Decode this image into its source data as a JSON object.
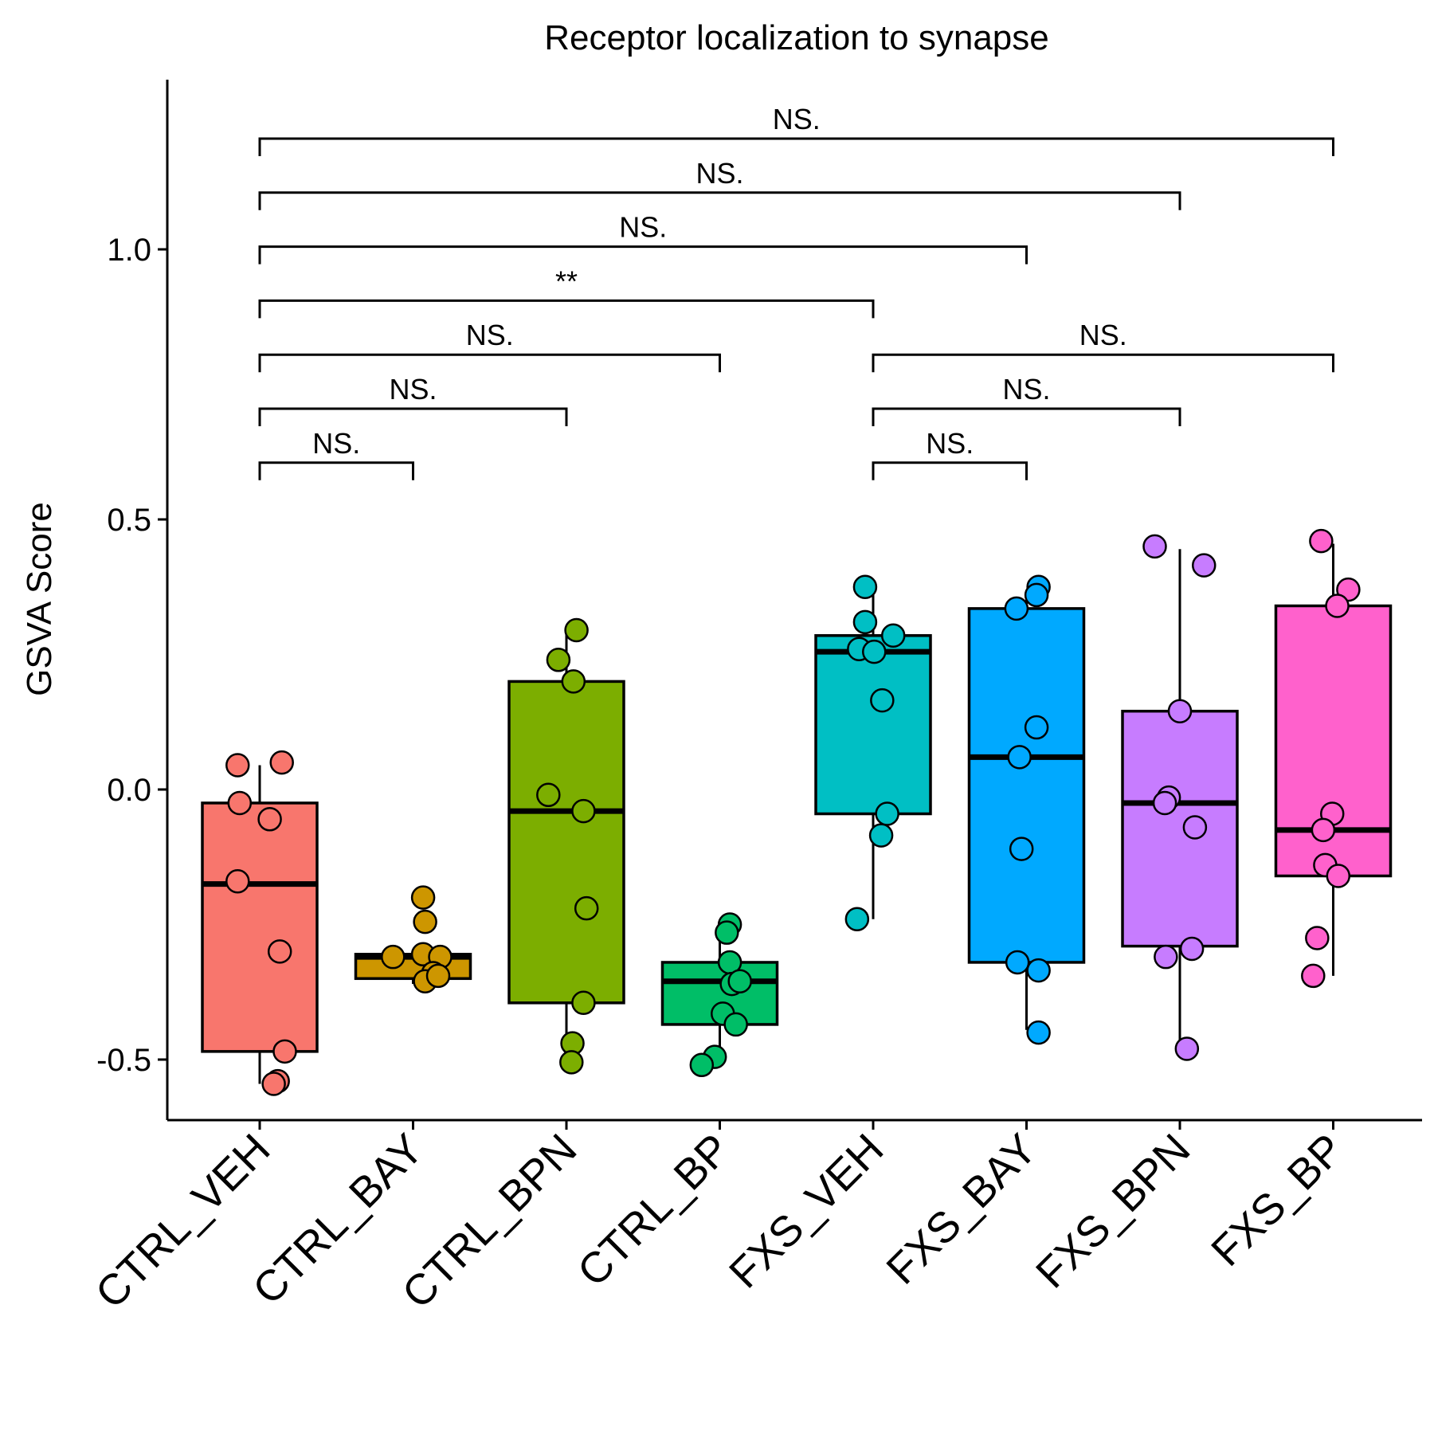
{
  "chart_data": {
    "type": "box",
    "title": "Receptor localization to synapse",
    "xlabel": "",
    "ylabel": "GSVA Score",
    "ylim": [
      -0.62,
      1.3
    ],
    "yticks": [
      "-0.5",
      "0.0",
      "0.5",
      "1.0"
    ],
    "ytick_values": [
      -0.5,
      0.0,
      0.5,
      1.0
    ],
    "grid": false,
    "legend": "none",
    "groups": [
      {
        "name": "CTRL_VEH",
        "color": "#F8766D",
        "q1": -0.485,
        "median": -0.175,
        "q3": -0.025,
        "whisker_low": -0.545,
        "whisker_high": 0.045,
        "points": [
          [
            -0.22,
            0.045
          ],
          [
            0.22,
            0.05
          ],
          [
            -0.2,
            -0.025
          ],
          [
            0.1,
            -0.055
          ],
          [
            -0.22,
            -0.17
          ],
          [
            0.2,
            -0.3
          ],
          [
            0.25,
            -0.485
          ],
          [
            0.18,
            -0.54
          ],
          [
            0.14,
            -0.545
          ]
        ]
      },
      {
        "name": "CTRL_BAY",
        "color": "#CD9600",
        "q1": -0.35,
        "median": -0.31,
        "q3": -0.305,
        "whisker_low": -0.36,
        "whisker_high": -0.3,
        "points": [
          [
            0.1,
            -0.2
          ],
          [
            0.12,
            -0.245
          ],
          [
            -0.2,
            -0.31
          ],
          [
            0.1,
            -0.305
          ],
          [
            0.27,
            -0.31
          ],
          [
            0.2,
            -0.34
          ],
          [
            0.12,
            -0.355
          ],
          [
            0.25,
            -0.345
          ]
        ]
      },
      {
        "name": "CTRL_BPN",
        "color": "#7CAE00",
        "q1": -0.395,
        "median": -0.04,
        "q3": 0.2,
        "whisker_low": -0.51,
        "whisker_high": 0.29,
        "points": [
          [
            0.1,
            0.295
          ],
          [
            -0.08,
            0.24
          ],
          [
            0.07,
            0.2
          ],
          [
            -0.18,
            -0.01
          ],
          [
            0.17,
            -0.04
          ],
          [
            0.2,
            -0.22
          ],
          [
            0.17,
            -0.395
          ],
          [
            0.06,
            -0.47
          ],
          [
            0.05,
            -0.505
          ]
        ]
      },
      {
        "name": "CTRL_BP",
        "color": "#00BE67",
        "q1": -0.435,
        "median": -0.355,
        "q3": -0.32,
        "whisker_low": -0.51,
        "whisker_high": -0.255,
        "points": [
          [
            0.1,
            -0.25
          ],
          [
            0.07,
            -0.265
          ],
          [
            0.1,
            -0.32
          ],
          [
            0.12,
            -0.36
          ],
          [
            0.2,
            -0.355
          ],
          [
            0.03,
            -0.415
          ],
          [
            0.16,
            -0.435
          ],
          [
            -0.05,
            -0.495
          ],
          [
            -0.18,
            -0.51
          ]
        ]
      },
      {
        "name": "FXS_VEH",
        "color": "#00BFC4",
        "q1": -0.045,
        "median": 0.255,
        "q3": 0.285,
        "whisker_low": -0.24,
        "whisker_high": 0.375,
        "points": [
          [
            -0.08,
            0.375
          ],
          [
            -0.08,
            0.31
          ],
          [
            0.2,
            0.285
          ],
          [
            -0.14,
            0.26
          ],
          [
            0.01,
            0.255
          ],
          [
            0.09,
            0.165
          ],
          [
            0.14,
            -0.045
          ],
          [
            0.08,
            -0.085
          ],
          [
            -0.16,
            -0.24
          ]
        ]
      },
      {
        "name": "FXS_BAY",
        "color": "#00A9FF",
        "q1": -0.32,
        "median": 0.06,
        "q3": 0.335,
        "whisker_low": -0.445,
        "whisker_high": 0.365,
        "points": [
          [
            0.12,
            0.375
          ],
          [
            0.1,
            0.36
          ],
          [
            -0.1,
            0.335
          ],
          [
            0.1,
            0.115
          ],
          [
            -0.07,
            0.06
          ],
          [
            -0.05,
            -0.11
          ],
          [
            -0.09,
            -0.32
          ],
          [
            0.12,
            -0.335
          ],
          [
            0.12,
            -0.45
          ]
        ]
      },
      {
        "name": "FXS_BPN",
        "color": "#C77CFF",
        "q1": -0.29,
        "median": -0.025,
        "q3": 0.145,
        "whisker_low": -0.475,
        "whisker_high": 0.445,
        "points": [
          [
            -0.25,
            0.45
          ],
          [
            0.24,
            0.415
          ],
          [
            0.0,
            0.145
          ],
          [
            -0.11,
            -0.015
          ],
          [
            -0.15,
            -0.025
          ],
          [
            0.15,
            -0.07
          ],
          [
            0.12,
            -0.295
          ],
          [
            -0.14,
            -0.31
          ],
          [
            0.07,
            -0.48
          ]
        ]
      },
      {
        "name": "FXS_BP",
        "color": "#FF61CC",
        "q1": -0.16,
        "median": -0.075,
        "q3": 0.34,
        "whisker_low": -0.345,
        "whisker_high": 0.455,
        "points": [
          [
            -0.12,
            0.46
          ],
          [
            0.15,
            0.37
          ],
          [
            0.04,
            0.34
          ],
          [
            -0.01,
            -0.045
          ],
          [
            -0.1,
            -0.075
          ],
          [
            -0.08,
            -0.14
          ],
          [
            0.05,
            -0.16
          ],
          [
            -0.16,
            -0.275
          ],
          [
            -0.2,
            -0.345
          ]
        ]
      }
    ],
    "comparisons": [
      {
        "from": 0,
        "to": 1,
        "y": 0.605,
        "label": "NS."
      },
      {
        "from": 0,
        "to": 2,
        "y": 0.705,
        "label": "NS."
      },
      {
        "from": 0,
        "to": 3,
        "y": 0.805,
        "label": "NS."
      },
      {
        "from": 0,
        "to": 4,
        "y": 0.905,
        "label": "**"
      },
      {
        "from": 0,
        "to": 5,
        "y": 1.005,
        "label": "NS."
      },
      {
        "from": 0,
        "to": 6,
        "y": 1.105,
        "label": "NS."
      },
      {
        "from": 0,
        "to": 7,
        "y": 1.205,
        "label": "NS."
      },
      {
        "from": 4,
        "to": 5,
        "y": 0.605,
        "label": "NS."
      },
      {
        "from": 4,
        "to": 6,
        "y": 0.705,
        "label": "NS."
      },
      {
        "from": 4,
        "to": 7,
        "y": 0.805,
        "label": "NS."
      }
    ]
  }
}
